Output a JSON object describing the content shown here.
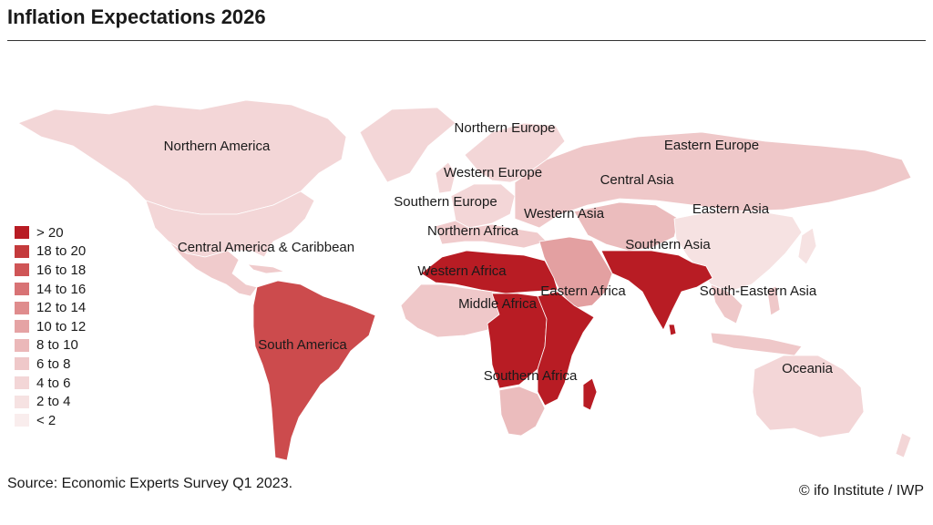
{
  "title": "Inflation Expectations 2026",
  "source": "Source: Economic Experts Survey Q1 2023.",
  "credit": "© ifo Institute / IWP",
  "legend": [
    {
      "label": "> 20",
      "color": "#b81c24"
    },
    {
      "label": "18 to 20",
      "color": "#c43a3c"
    },
    {
      "label": "16 to 18",
      "color": "#cf5556"
    },
    {
      "label": "14 to 16",
      "color": "#d87375"
    },
    {
      "label": "12 to 14",
      "color": "#df8c8d"
    },
    {
      "label": "10 to 12",
      "color": "#e5a3a4"
    },
    {
      "label": "8 to 10",
      "color": "#ebb8b9"
    },
    {
      "label": "6 to 8",
      "color": "#efc8c9"
    },
    {
      "label": "4 to 6",
      "color": "#f3d6d7"
    },
    {
      "label": "2 to 4",
      "color": "#f6e2e2"
    },
    {
      "label": "< 2",
      "color": "#f9eded"
    }
  ],
  "regions": {
    "northern_america": "Northern America",
    "central_america": "Central America & Caribbean",
    "south_america": "South America",
    "northern_europe": "Northern Europe",
    "western_europe": "Western Europe",
    "southern_europe": "Southern Europe",
    "eastern_europe": "Eastern Europe",
    "central_asia": "Central Asia",
    "western_asia": "Western Asia",
    "eastern_asia": "Eastern Asia",
    "southern_asia": "Southern Asia",
    "south_eastern_asia": "South-Eastern Asia",
    "oceania": "Oceania",
    "northern_africa": "Northern Africa",
    "western_africa": "Western Africa",
    "middle_africa": "Middle Africa",
    "eastern_africa": "Eastern Africa",
    "southern_africa": "Southern Africa"
  },
  "region_colors": {
    "northern_america": "#f3d6d7",
    "central_america": "#f0cbcc",
    "south_america": "#cc4b4d",
    "northern_europe": "#f3d6d7",
    "western_europe": "#f3d6d7",
    "southern_europe": "#f0cbcc",
    "eastern_europe": "#efc8c9",
    "central_asia": "#ebbcbd",
    "western_asia": "#e3a0a1",
    "eastern_asia": "#f6e2e2",
    "southern_asia": "#b81c24",
    "south_eastern_asia": "#efc8c9",
    "oceania": "#f3d6d7",
    "northern_africa": "#b81c24",
    "western_africa": "#efc8c9",
    "middle_africa": "#b81c24",
    "eastern_africa": "#b81c24",
    "southern_africa": "#ebbcbd"
  }
}
